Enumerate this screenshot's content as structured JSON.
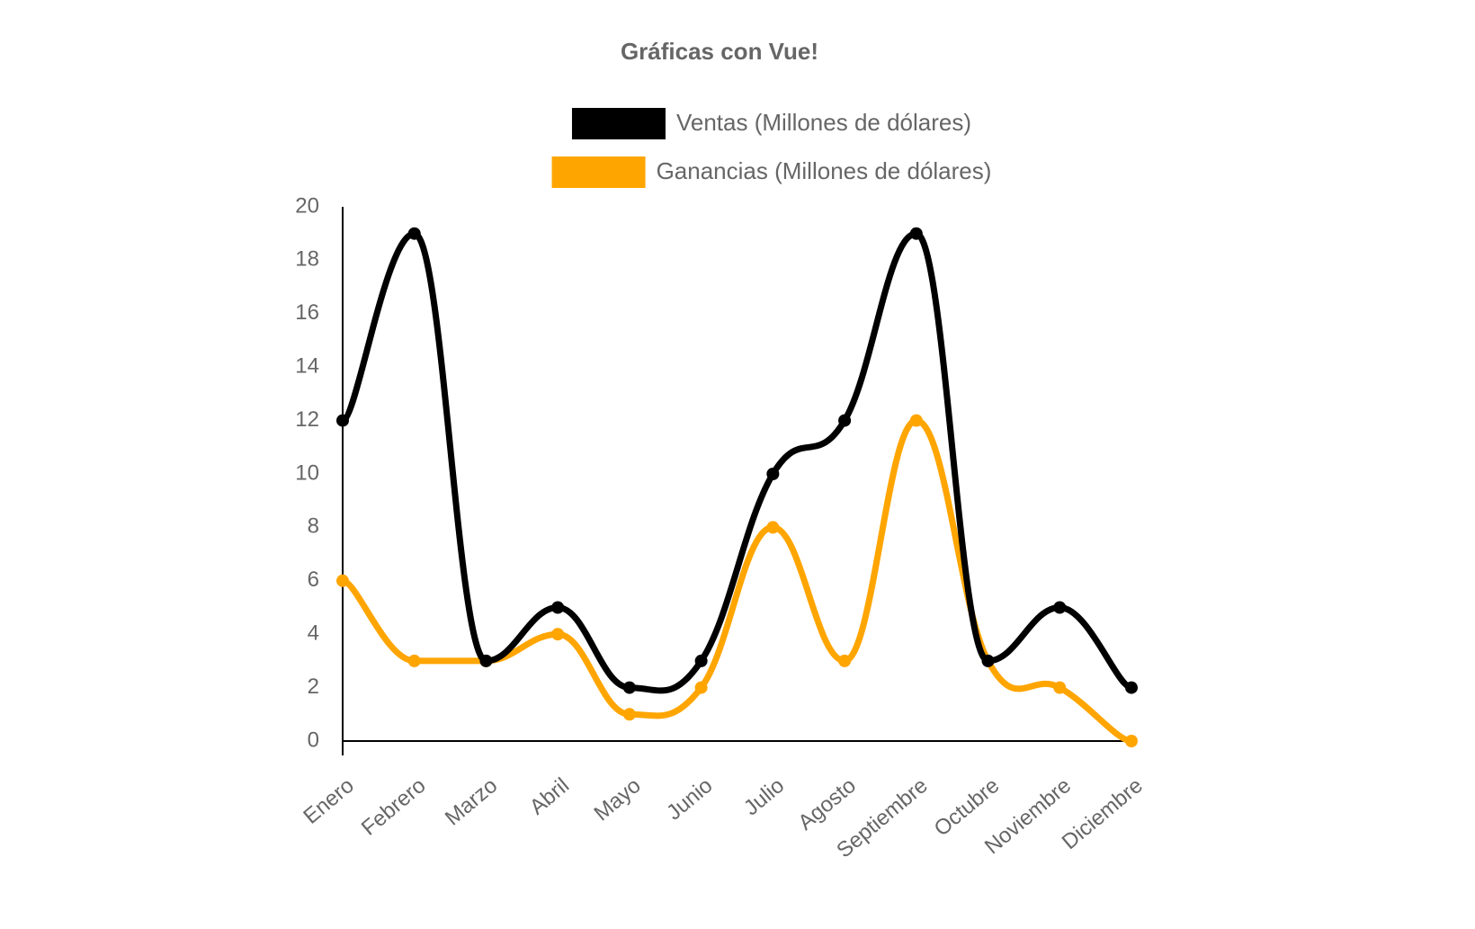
{
  "chart_data": {
    "type": "line",
    "title": "Gráficas con Vue!",
    "categories": [
      "Enero",
      "Febrero",
      "Marzo",
      "Abril",
      "Mayo",
      "Junio",
      "Julio",
      "Agosto",
      "Septiembre",
      "Octubre",
      "Noviembre",
      "Diciembre"
    ],
    "series": [
      {
        "name": "Ventas (Millones de dólares)",
        "color": "#000000",
        "values": [
          12,
          19,
          3,
          5,
          2,
          3,
          10,
          12,
          19,
          3,
          5,
          2
        ]
      },
      {
        "name": "Ganancias (Millones de dólares)",
        "color": "#FFA500",
        "values": [
          6,
          3,
          3,
          4,
          1,
          2,
          8,
          3,
          12,
          3,
          2,
          0
        ]
      }
    ],
    "yticks": [
      "0",
      "2",
      "4",
      "6",
      "8",
      "10",
      "12",
      "14",
      "16",
      "18",
      "20"
    ],
    "ylim": [
      0,
      20
    ],
    "xlabel": "",
    "ylabel": "",
    "legend_position": "top",
    "grid": false,
    "line_style": "smooth"
  }
}
